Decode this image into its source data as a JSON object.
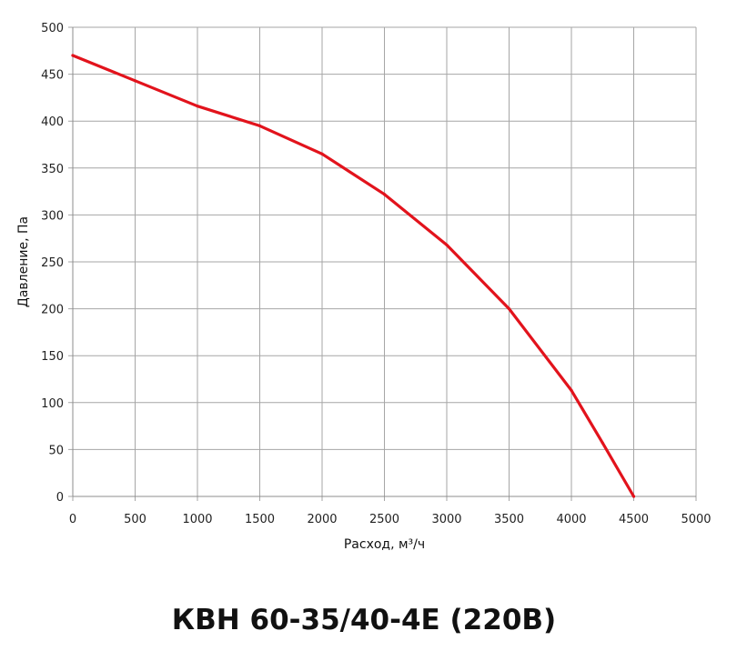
{
  "chart_data": {
    "type": "line",
    "title": "КВН 60-35/40-4Е (220В)",
    "xlabel": "Расход, м³/ч",
    "ylabel": "Давление, Па",
    "xlim": [
      0,
      5000
    ],
    "ylim": [
      0,
      500
    ],
    "xticks": [
      0,
      500,
      1000,
      1500,
      2000,
      2500,
      3000,
      3500,
      4000,
      4500,
      5000
    ],
    "yticks": [
      0,
      50,
      100,
      150,
      200,
      250,
      300,
      350,
      400,
      450,
      500
    ],
    "grid": true,
    "series": [
      {
        "color": "#e2131c",
        "x": [
          0,
          500,
          1000,
          1500,
          2000,
          2500,
          3000,
          3500,
          4000,
          4250,
          4500
        ],
        "y": [
          470,
          443,
          416,
          395,
          365,
          322,
          268,
          200,
          113,
          57,
          0
        ]
      }
    ]
  }
}
